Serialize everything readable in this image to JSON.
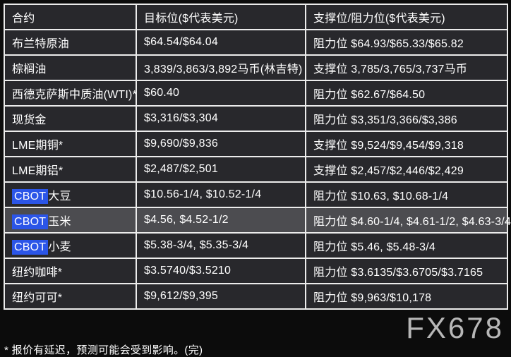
{
  "colors": {
    "page_bg": "#0c0c0c",
    "cell_bg": "#28282c",
    "highlight_row_bg": "#4c4c50",
    "cbot_highlight": "#2b55e8",
    "border": "#ececec",
    "text": "#ffffff",
    "watermark": "#c6c6c6"
  },
  "table": {
    "columns": [
      "合约",
      "目标位($代表美元)",
      "支撑位/阻力位($代表美元)"
    ],
    "rows": [
      {
        "prefix": "",
        "name": "布兰特原油",
        "target": "$64.54/$64.04",
        "levels": "阻力位 $64.93/$65.33/$65.82",
        "highlighted": false
      },
      {
        "prefix": "",
        "name": "棕榈油",
        "target": "3,839/3,863/3,892马币(林吉特)",
        "levels": "支撑位 3,785/3,765/3,737马币",
        "highlighted": false
      },
      {
        "prefix": "",
        "name": "西德克萨斯中质油(WTI)*",
        "target": "$60.40",
        "levels": "阻力位 $62.67/$64.50",
        "highlighted": false
      },
      {
        "prefix": "",
        "name": "现货金",
        "target": "$3,316/$3,304",
        "levels": "阻力位 $3,351/3,366/$3,386",
        "highlighted": false
      },
      {
        "prefix": "",
        "name": "LME期铜*",
        "target": "$9,690/$9,836",
        "levels": "支撑位 $9,524/$9,454/$9,318",
        "highlighted": false
      },
      {
        "prefix": "",
        "name": "LME期铝*",
        "target": "$2,487/$2,501",
        "levels": "支撑位 $2,457/$2,446/$2,429",
        "highlighted": false
      },
      {
        "prefix": "CBOT",
        "name": "大豆",
        "target": "$10.56-1/4, $10.52-1/4",
        "levels": "阻力位 $10.63, $10.68-1/4",
        "highlighted": false
      },
      {
        "prefix": "CBOT",
        "name": "玉米",
        "target": "$4.56, $4.52-1/2",
        "levels": "阻力位 $4.60-1/4, $4.61-1/2, $4.63-3/4",
        "highlighted": true
      },
      {
        "prefix": "CBOT",
        "name": "小麦",
        "target": "$5.38-3/4, $5.35-3/4",
        "levels": "阻力位 $5.46, $5.48-3/4",
        "highlighted": false
      },
      {
        "prefix": "",
        "name": "纽约咖啡*",
        "target": "$3.5740/$3.5210",
        "levels": "阻力位 $3.6135/$3.6705/$3.7165",
        "highlighted": false
      },
      {
        "prefix": "",
        "name": "纽约可可*",
        "target": "$9,612/$9,395",
        "levels": "阻力位 $9,963/$10,178",
        "highlighted": false
      }
    ]
  },
  "footnote": {
    "text": "* 报价有延迟，预测可能会受到影响。(完)"
  },
  "watermark": {
    "text": "FX678"
  }
}
